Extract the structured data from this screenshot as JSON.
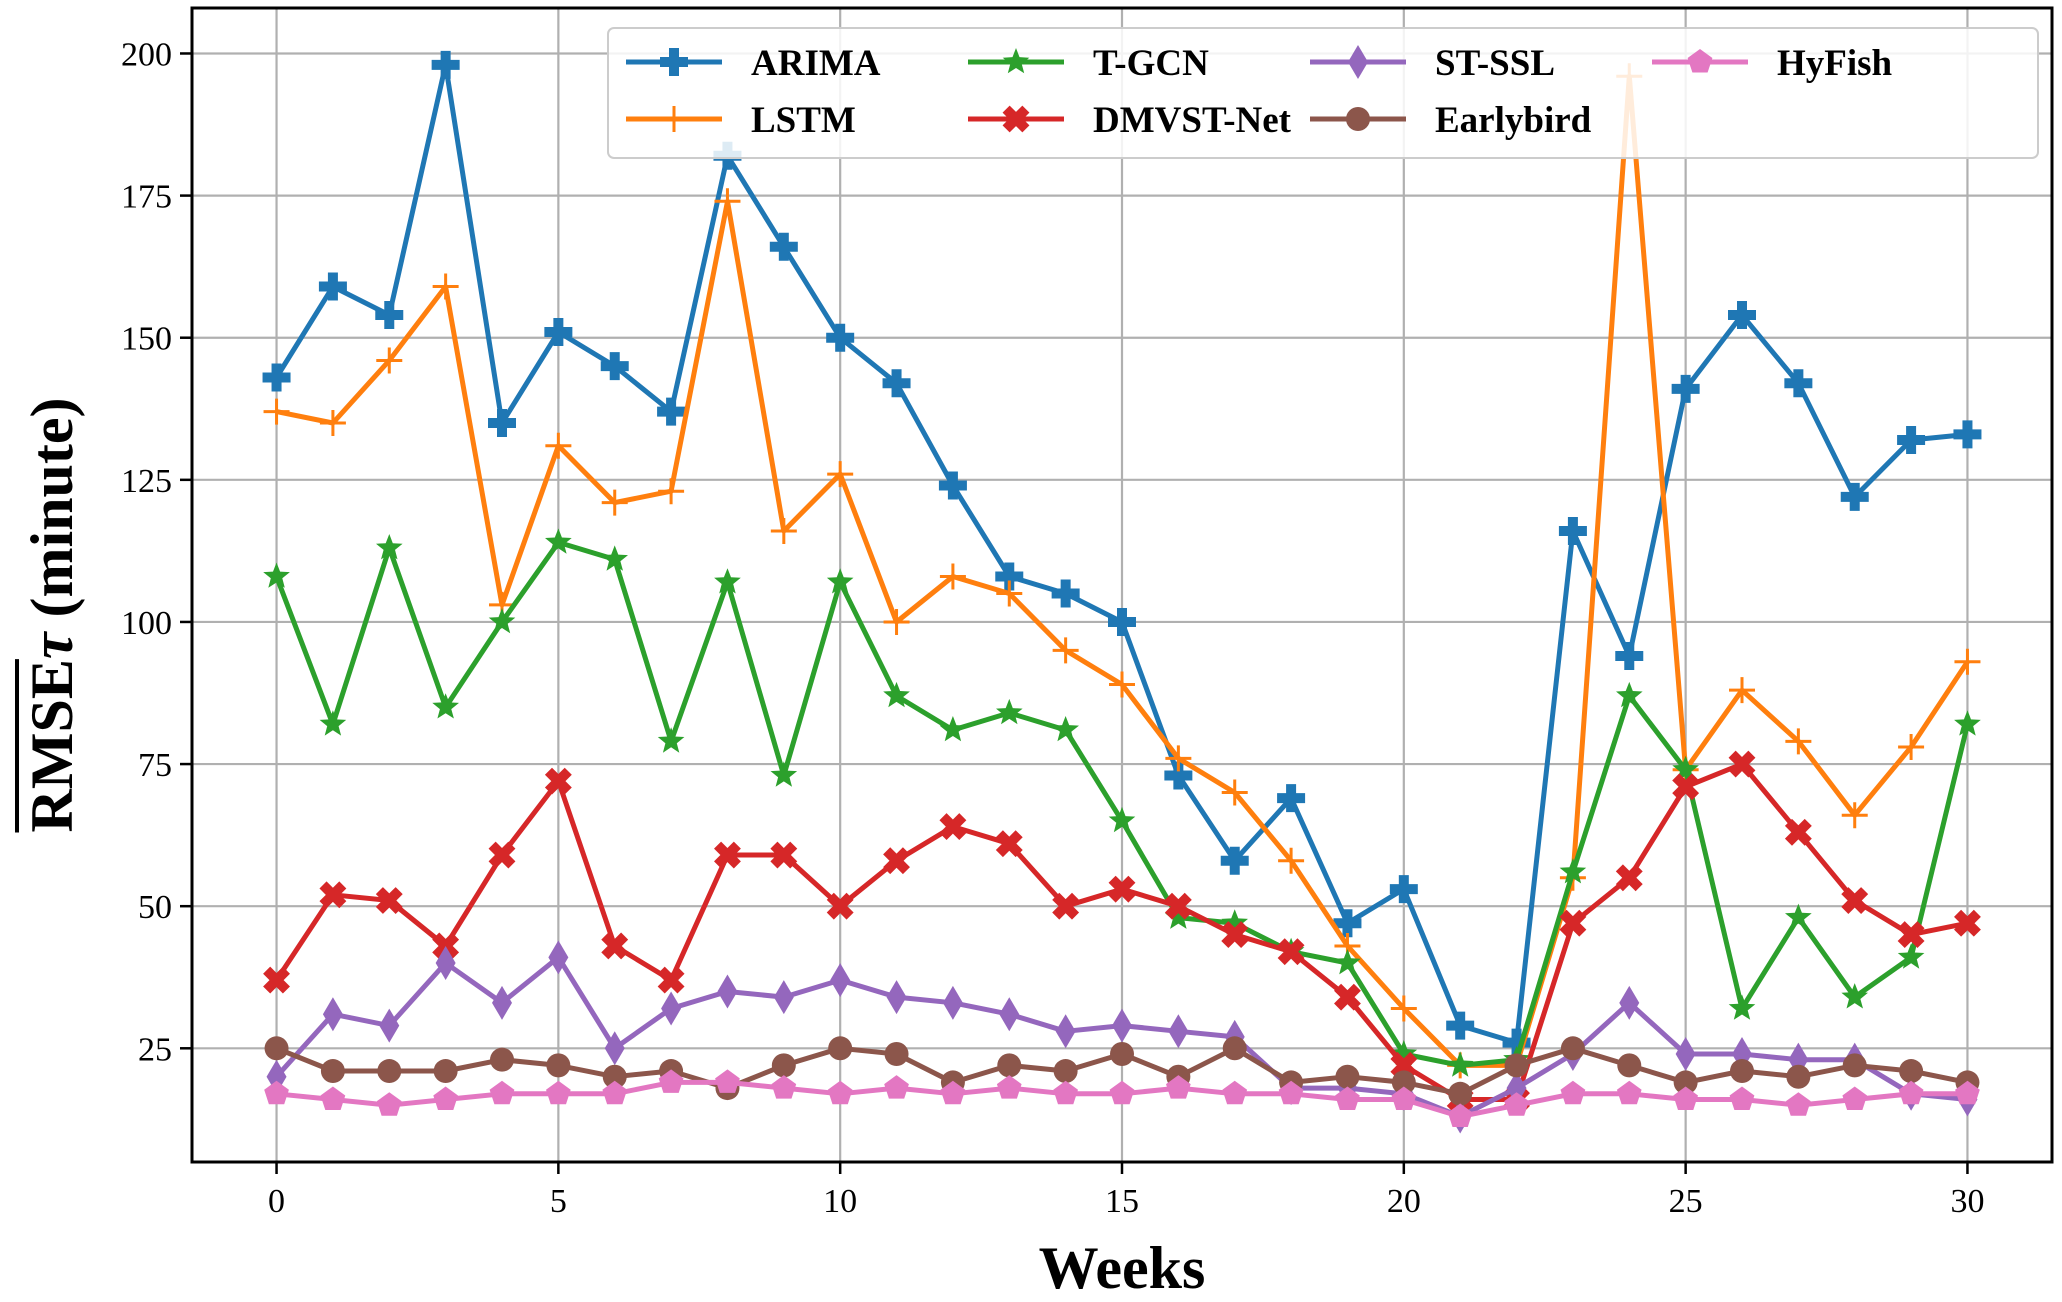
{
  "chart_data": {
    "type": "line",
    "title": "",
    "xlabel": "Weeks",
    "ylabel": "RMSEτ (minute)",
    "ylabel_parts": {
      "overlined": "RMSE",
      "subscript": "τ",
      "unit": " (minute)"
    },
    "xlim": [
      -1.5,
      31.5
    ],
    "ylim": [
      5,
      208
    ],
    "xticks": [
      0,
      5,
      10,
      15,
      20,
      25,
      30
    ],
    "yticks": [
      25,
      50,
      75,
      100,
      125,
      150,
      175,
      200
    ],
    "grid": true,
    "legend_position": "top-right",
    "x": [
      0,
      1,
      2,
      3,
      4,
      5,
      6,
      7,
      8,
      9,
      10,
      11,
      12,
      13,
      14,
      15,
      16,
      17,
      18,
      19,
      20,
      21,
      22,
      23,
      24,
      25,
      26,
      27,
      28,
      29,
      30
    ],
    "series": [
      {
        "name": "ARIMA",
        "color": "#1f77b4",
        "marker": "plus-filled",
        "values": [
          143,
          159,
          154,
          198,
          135,
          151,
          145,
          137,
          182,
          166,
          150,
          142,
          124,
          108,
          105,
          100,
          73,
          58,
          69,
          47,
          53,
          29,
          26,
          116,
          94,
          141,
          154,
          142,
          122,
          132,
          133
        ]
      },
      {
        "name": "LSTM",
        "color": "#ff7f0e",
        "marker": "plus-thin",
        "values": [
          137,
          135,
          146,
          159,
          103,
          131,
          121,
          123,
          174,
          116,
          126,
          100,
          108,
          105,
          95,
          89,
          76,
          70,
          58,
          43,
          32,
          22,
          22,
          55,
          196,
          74,
          88,
          79,
          66,
          78,
          93
        ]
      },
      {
        "name": "T-GCN",
        "color": "#2ca02c",
        "marker": "star",
        "values": [
          108,
          82,
          113,
          85,
          100,
          114,
          111,
          79,
          107,
          73,
          107,
          87,
          81,
          84,
          81,
          65,
          48,
          47,
          42,
          40,
          24,
          22,
          23,
          56,
          87,
          74,
          32,
          48,
          34,
          41,
          82
        ]
      },
      {
        "name": "DMVST-Net",
        "color": "#d62728",
        "marker": "x-filled",
        "values": [
          37,
          52,
          51,
          43,
          59,
          72,
          43,
          37,
          59,
          59,
          50,
          58,
          64,
          61,
          50,
          53,
          50,
          45,
          42,
          34,
          22,
          16,
          16,
          47,
          55,
          71,
          75,
          63,
          51,
          45,
          47
        ]
      },
      {
        "name": "ST-SSL",
        "color": "#9467bd",
        "marker": "diamond",
        "values": [
          20,
          31,
          29,
          40,
          33,
          41,
          25,
          32,
          35,
          34,
          37,
          34,
          33,
          31,
          28,
          29,
          28,
          27,
          18,
          18,
          17,
          13,
          18,
          24,
          33,
          24,
          24,
          23,
          23,
          17,
          16
        ]
      },
      {
        "name": "Earlybird",
        "color": "#8c564b",
        "marker": "circle",
        "values": [
          25,
          21,
          21,
          21,
          23,
          22,
          20,
          21,
          18,
          22,
          25,
          24,
          19,
          22,
          21,
          24,
          20,
          25,
          19,
          20,
          19,
          17,
          22,
          25,
          22,
          19,
          21,
          20,
          22,
          21,
          19
        ]
      },
      {
        "name": "HyFish",
        "color": "#e377c2",
        "marker": "pentagon",
        "values": [
          17,
          16,
          15,
          16,
          17,
          17,
          17,
          19,
          19,
          18,
          17,
          18,
          17,
          18,
          17,
          17,
          18,
          17,
          17,
          16,
          16,
          13,
          15,
          17,
          17,
          16,
          16,
          15,
          16,
          17,
          17
        ]
      }
    ]
  }
}
